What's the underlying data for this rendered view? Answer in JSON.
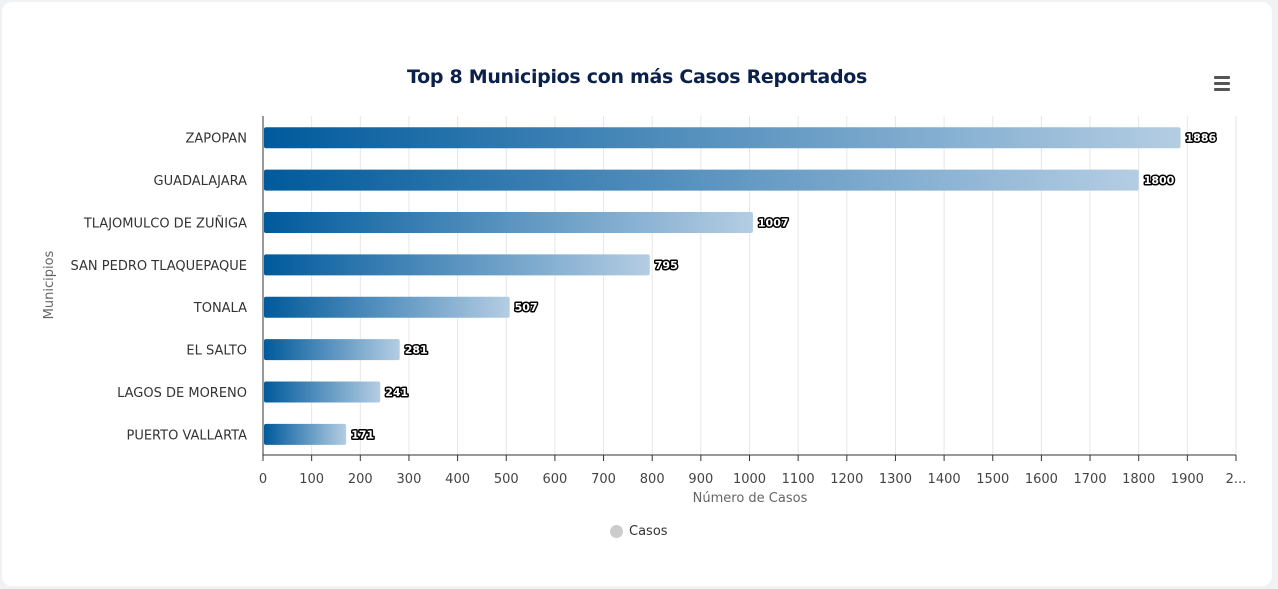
{
  "chart_data": {
    "type": "bar",
    "orientation": "horizontal",
    "title": "Top 8 Municipios con más Casos Reportados",
    "ylabel": "Municipios",
    "xlabel": "Número de Casos",
    "categories": [
      "ZAPOPAN",
      "GUADALAJARA",
      "TLAJOMULCO DE ZUÑIGA",
      "SAN PEDRO TLAQUEPAQUE",
      "TONALA",
      "EL SALTO",
      "LAGOS DE MORENO",
      "PUERTO VALLARTA"
    ],
    "series": [
      {
        "name": "Casos",
        "values": [
          1886,
          1800,
          1007,
          795,
          507,
          281,
          241,
          171
        ]
      }
    ],
    "xlim": [
      0,
      2000
    ],
    "x_ticks": [
      "0",
      "100",
      "200",
      "300",
      "400",
      "500",
      "600",
      "700",
      "800",
      "900",
      "1000",
      "1100",
      "1200",
      "1300",
      "1400",
      "1500",
      "1600",
      "1700",
      "1800",
      "1900",
      "2..."
    ],
    "grid": true,
    "legend_position": "bottom-center",
    "bar_color_start": "#005a9c",
    "bar_color_end": "#b4cde3",
    "legend_color": "#cccccc"
  }
}
